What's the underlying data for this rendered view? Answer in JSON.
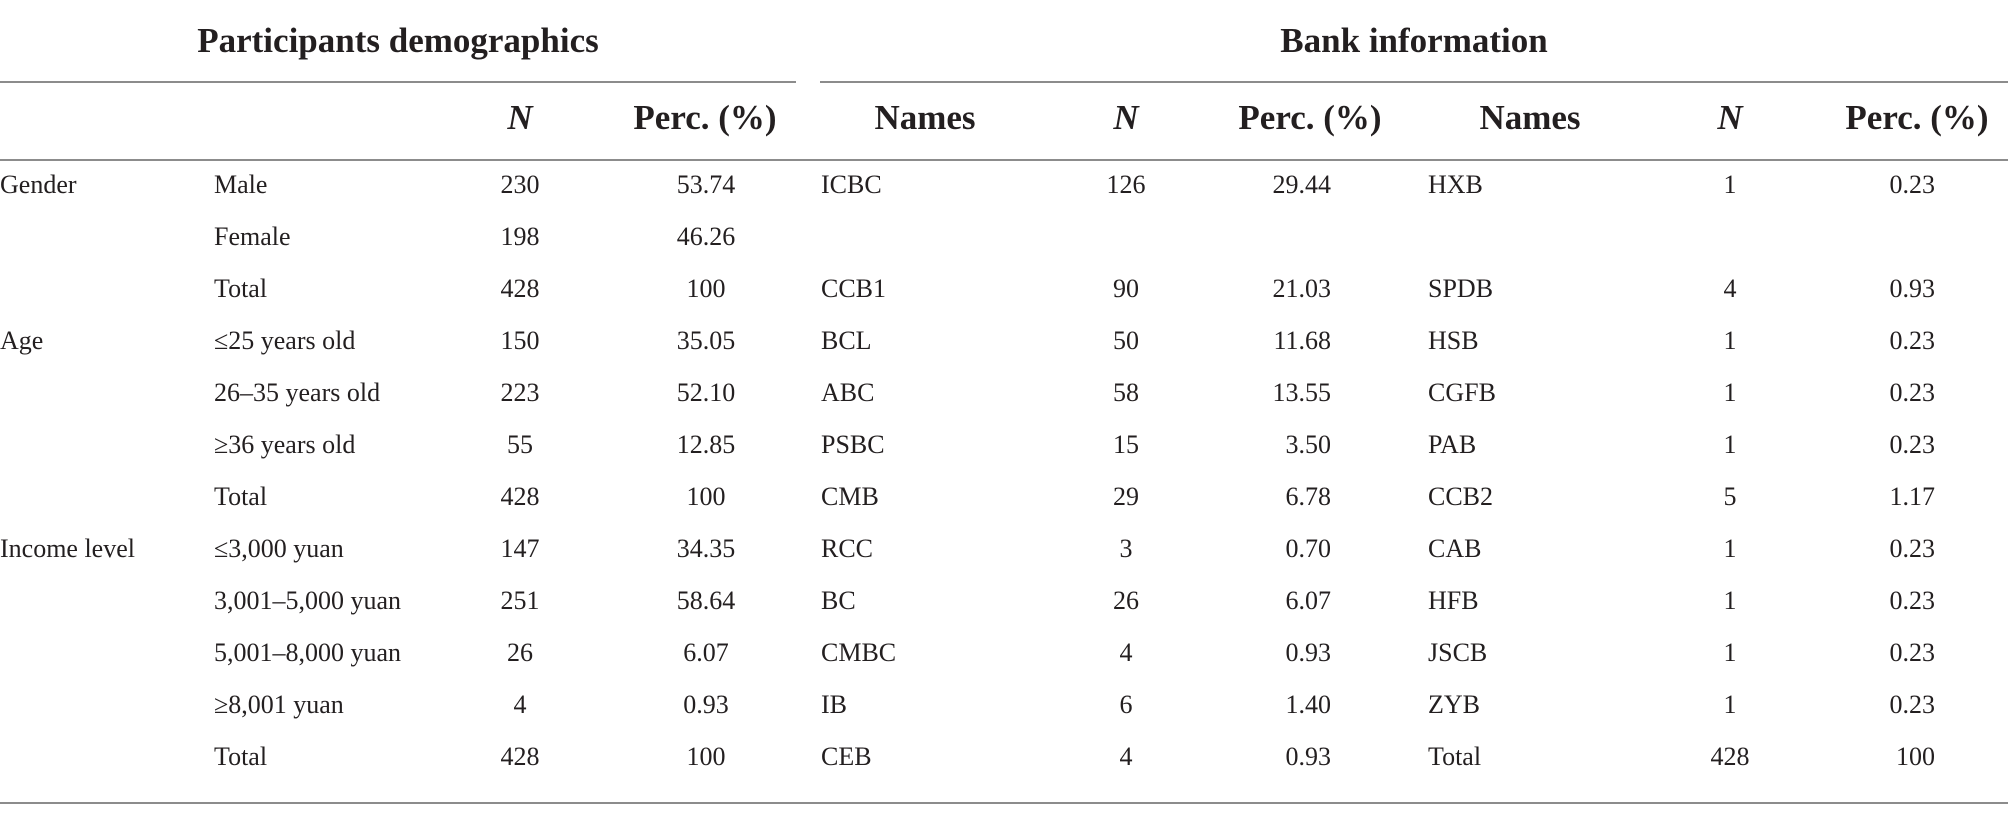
{
  "table": {
    "group_headers": {
      "demographics": "Participants demographics",
      "bank": "Bank information"
    },
    "column_headers": {
      "demo_n": "N",
      "demo_perc": "Perc. (%)",
      "bank1_names": "Names",
      "bank1_n": "N",
      "bank1_perc": "Perc. (%)",
      "bank2_names": "Names",
      "bank2_n": "N",
      "bank2_perc": "Perc. (%)"
    },
    "rows": [
      {
        "category": "Gender",
        "item": "Male",
        "n": "230",
        "perc": "53.74",
        "bank1_name": "ICBC",
        "bank1_n": "126",
        "bank1_perc": "29.44",
        "bank2_name": "HXB",
        "bank2_n": "1",
        "bank2_perc": "0.23"
      },
      {
        "category": "",
        "item": "Female",
        "n": "198",
        "perc": "46.26",
        "bank1_name": "",
        "bank1_n": "",
        "bank1_perc": "",
        "bank2_name": "",
        "bank2_n": "",
        "bank2_perc": ""
      },
      {
        "category": "",
        "item": "Total",
        "n": "428",
        "perc": "100",
        "bank1_name": "CCB1",
        "bank1_n": "90",
        "bank1_perc": "21.03",
        "bank2_name": "SPDB",
        "bank2_n": "4",
        "bank2_perc": "0.93"
      },
      {
        "category": "Age",
        "item": "≤25 years old",
        "n": "150",
        "perc": "35.05",
        "bank1_name": "BCL",
        "bank1_n": "50",
        "bank1_perc": "11.68",
        "bank2_name": "HSB",
        "bank2_n": "1",
        "bank2_perc": "0.23"
      },
      {
        "category": "",
        "item": "26–35 years old",
        "n": "223",
        "perc": "52.10",
        "bank1_name": "ABC",
        "bank1_n": "58",
        "bank1_perc": "13.55",
        "bank2_name": "CGFB",
        "bank2_n": "1",
        "bank2_perc": "0.23"
      },
      {
        "category": "",
        "item": "≥36 years old",
        "n": "55",
        "perc": "12.85",
        "bank1_name": "PSBC",
        "bank1_n": "15",
        "bank1_perc": "3.50",
        "bank2_name": "PAB",
        "bank2_n": "1",
        "bank2_perc": "0.23"
      },
      {
        "category": "",
        "item": "Total",
        "n": "428",
        "perc": "100",
        "bank1_name": "CMB",
        "bank1_n": "29",
        "bank1_perc": "6.78",
        "bank2_name": "CCB2",
        "bank2_n": "5",
        "bank2_perc": "1.17"
      },
      {
        "category": "Income level",
        "item": "≤3,000 yuan",
        "n": "147",
        "perc": "34.35",
        "bank1_name": "RCC",
        "bank1_n": "3",
        "bank1_perc": "0.70",
        "bank2_name": "CAB",
        "bank2_n": "1",
        "bank2_perc": "0.23"
      },
      {
        "category": "",
        "item": "3,001–5,000 yuan",
        "n": "251",
        "perc": "58.64",
        "bank1_name": "BC",
        "bank1_n": "26",
        "bank1_perc": "6.07",
        "bank2_name": "HFB",
        "bank2_n": "1",
        "bank2_perc": "0.23"
      },
      {
        "category": "",
        "item": "5,001–8,000 yuan",
        "n": "26",
        "perc": "6.07",
        "bank1_name": "CMBC",
        "bank1_n": "4",
        "bank1_perc": "0.93",
        "bank2_name": "JSCB",
        "bank2_n": "1",
        "bank2_perc": "0.23"
      },
      {
        "category": "",
        "item": "≥8,001 yuan",
        "n": "4",
        "perc": "0.93",
        "bank1_name": "IB",
        "bank1_n": "6",
        "bank1_perc": "1.40",
        "bank2_name": "ZYB",
        "bank2_n": "1",
        "bank2_perc": "0.23"
      },
      {
        "category": "",
        "item": "Total",
        "n": "428",
        "perc": "100",
        "bank1_name": "CEB",
        "bank1_n": "4",
        "bank1_perc": "0.93",
        "bank2_name": "Total",
        "bank2_n": "428",
        "bank2_perc": "100"
      }
    ]
  }
}
